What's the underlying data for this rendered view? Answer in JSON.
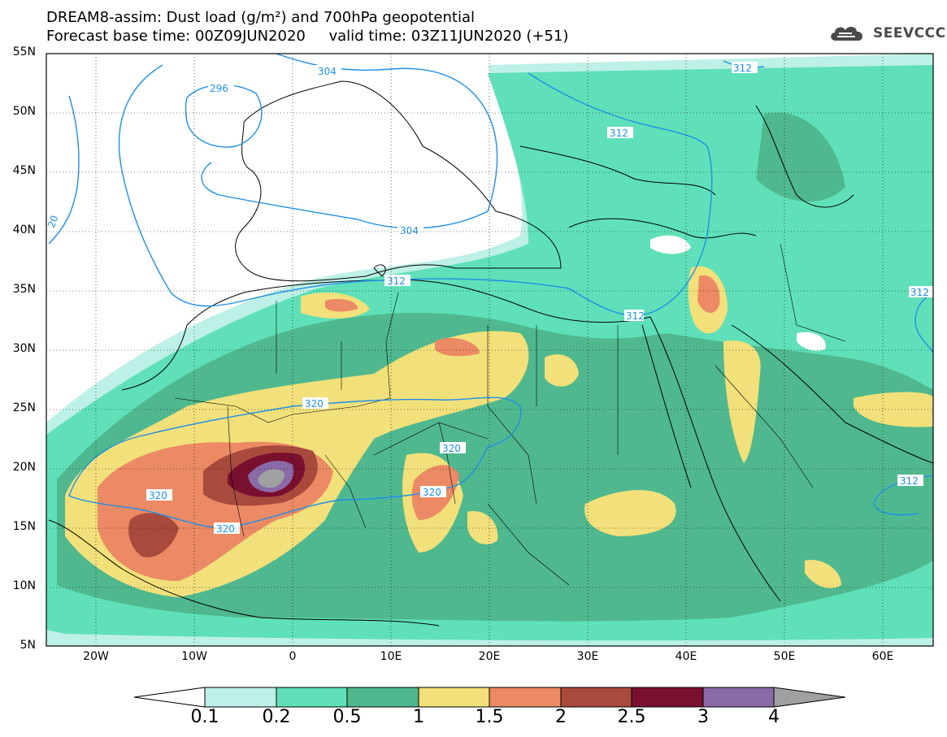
{
  "header": {
    "title_line1": "DREAM8-assim: Dust load (g/m²) and 700hPa geopotential",
    "title_line2": "Forecast base time: 00Z09JUN2020     valid time: 03Z11JUN2020 (+51)",
    "logo_text": "SEEVCCC",
    "logo_icon": "cloud-icon"
  },
  "map": {
    "lat_labels": [
      "55N",
      "50N",
      "45N",
      "40N",
      "35N",
      "30N",
      "25N",
      "20N",
      "15N",
      "10N",
      "5N"
    ],
    "lon_labels": [
      "20W",
      "10W",
      "0",
      "10E",
      "20E",
      "30E",
      "40E",
      "50E",
      "60E"
    ],
    "contour_labels": [
      "304",
      "296",
      "312",
      "20",
      "304",
      "312",
      "312",
      "320",
      "320",
      "320",
      "320",
      "320",
      "312",
      "312",
      "312"
    ],
    "domain": {
      "lon": [
        -25,
        65
      ],
      "lat": [
        5,
        55
      ]
    }
  },
  "colorbar": {
    "labels": [
      "0.1",
      "0.2",
      "0.5",
      "1",
      "1.5",
      "2",
      "2.5",
      "3",
      "4"
    ],
    "colors": [
      "#bdf0e6",
      "#5fe0b8",
      "#4fb88e",
      "#f2e07a",
      "#eb8a64",
      "#a84a3c",
      "#7a0f2e",
      "#8b6aa8"
    ],
    "over_color": "#a0a0a0",
    "under_color": "#ffffff"
  }
}
